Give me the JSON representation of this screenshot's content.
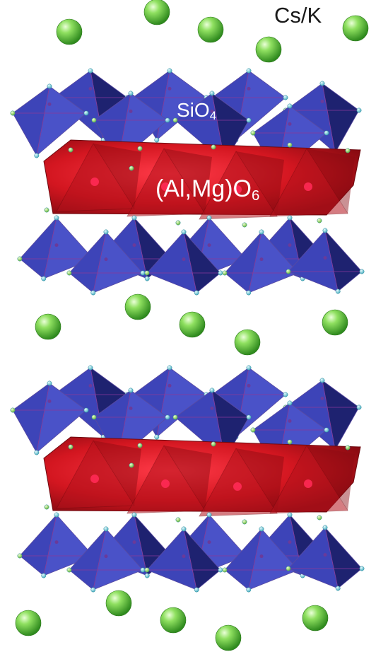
{
  "labels": {
    "cation": "Cs/K",
    "tetra_main": "SiO",
    "tetra_sub": "4",
    "octa_main": "(Al,Mg)O",
    "octa_sub": "6"
  },
  "colors": {
    "tetrahedron": "#3d44b8",
    "tetrahedron_dark": "#1e2270",
    "octahedron": "#d91a24",
    "octahedron_dark": "#8a0a12",
    "oxygen_node": "#7fd6e6",
    "cation_sphere": "#7ed957"
  }
}
